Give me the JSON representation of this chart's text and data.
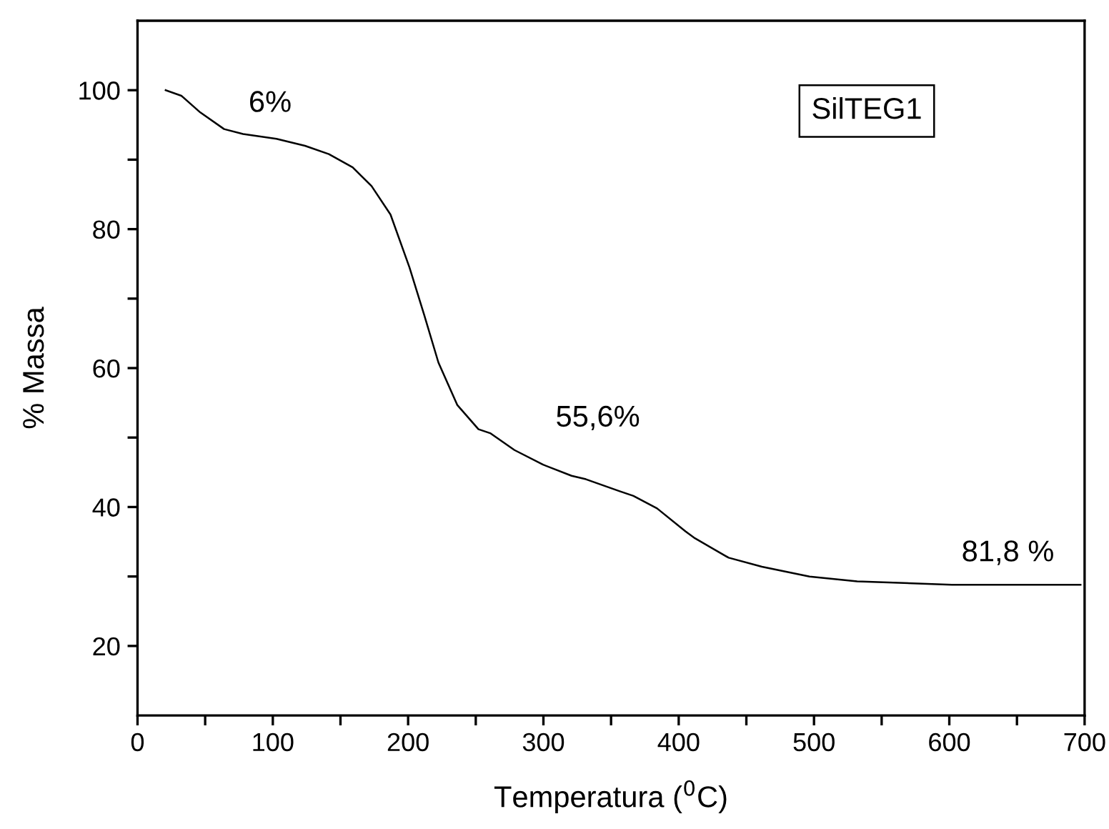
{
  "chart_data": {
    "type": "line",
    "xlabel": "Temperatura ($^{0}$C)",
    "ylabel": "% Massa",
    "x": [
      20.8,
      32.4,
      46.4,
      64,
      78,
      102.7,
      123.8,
      141.4,
      159,
      173,
      187,
      201,
      211.8,
      222.4,
      236.3,
      252,
      261,
      278.6,
      299.7,
      320.8,
      331.4,
      356,
      366.5,
      384,
      405,
      412,
      436.9,
      461.5,
      496.7,
      531.9,
      602,
      697
    ],
    "series": [
      {
        "color": "#000000",
        "values": [
          100,
          99.2,
          96.8,
          94.4,
          93.7,
          93.0,
          92.0,
          90.8,
          88.9,
          86.2,
          82.1,
          74.5,
          67.7,
          60.8,
          54.7,
          51.2,
          50.6,
          48.2,
          46.1,
          44.5,
          44.0,
          42.3,
          41.6,
          39.8,
          36.5,
          35.5,
          32.7,
          31.4,
          30.0,
          29.3,
          28.8,
          28.8
        ]
      }
    ],
    "xlim": [
      0,
      700
    ],
    "ylim": [
      10,
      110
    ],
    "xticks": [
      0,
      {
        "value": 50,
        "label": null
      },
      100,
      {
        "value": 150,
        "label": null
      },
      200,
      {
        "value": 250,
        "label": null
      },
      300,
      {
        "value": 350,
        "label": null
      },
      400,
      {
        "value": 450,
        "label": null
      },
      500,
      {
        "value": 550,
        "label": null
      },
      600,
      {
        "value": 650,
        "label": null
      },
      700
    ],
    "yticks": [
      20,
      {
        "value": 30,
        "label": null
      },
      40,
      {
        "value": 50,
        "label": null
      },
      60,
      {
        "value": 70,
        "label": null
      },
      80,
      {
        "value": 90,
        "label": null
      },
      100
    ],
    "annotations": [
      "6%",
      "55,6%",
      "81,8 %",
      "SilTEG1"
    ],
    "grid": false,
    "legend": false,
    "line_style": "solid",
    "marker": "none"
  }
}
